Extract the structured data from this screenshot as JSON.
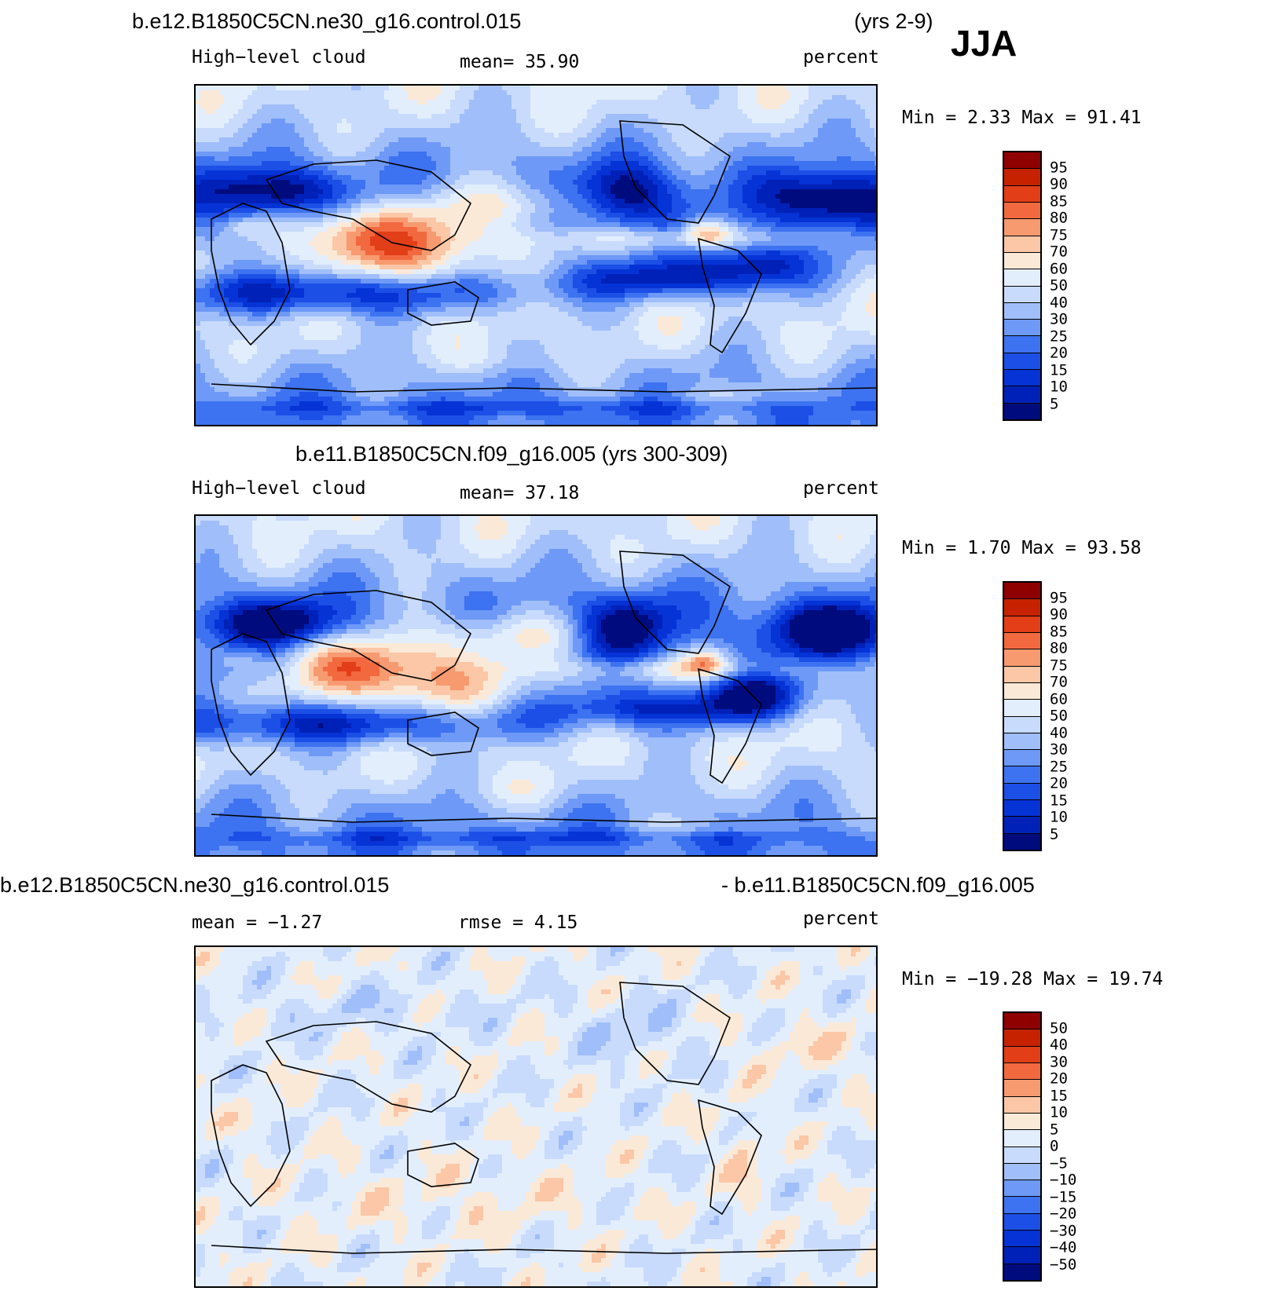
{
  "season": "JJA",
  "colors": {
    "palette": [
      "#000b7e",
      "#0021b8",
      "#0533d6",
      "#1c4fe6",
      "#3d72f0",
      "#6e99f7",
      "#a0bef9",
      "#c8dbfc",
      "#e3eefd",
      "#fbe9d8",
      "#fbc7a6",
      "#f79a70",
      "#f2693f",
      "#e23e17",
      "#c62200",
      "#8f0000"
    ],
    "land_outline": "#000000"
  },
  "panels": [
    {
      "title_left": "b.e12.B1850C5CN.ne30_g16.control.015",
      "title_right": "(yrs 2-9)",
      "variable": "High−level cloud",
      "stat": "mean=   35.90",
      "units": "percent",
      "minmax": "Min =    2.33 Max =   91.41",
      "colorbar_labels": [
        "95",
        "90",
        "85",
        "80",
        "75",
        "70",
        "60",
        "50",
        "40",
        "30",
        "25",
        "20",
        "15",
        "10",
        "5"
      ],
      "field": "model"
    },
    {
      "title_left": "b.e11.B1850C5CN.f09_g16.005 (yrs 300-309)",
      "variable": "High−level cloud",
      "stat": "mean=   37.18",
      "units": "percent",
      "minmax": "Min =    1.70 Max =   93.58",
      "colorbar_labels": [
        "95",
        "90",
        "85",
        "80",
        "75",
        "70",
        "60",
        "50",
        "40",
        "30",
        "25",
        "20",
        "15",
        "10",
        "5"
      ],
      "field": "control"
    },
    {
      "title_left": "b.e12.B1850C5CN.ne30_g16.control.015",
      "title_right": "- b.e11.B1850C5CN.f09_g16.005",
      "stat_left": "mean =   −1.27",
      "stat": "rmse =    4.15",
      "units": "percent",
      "minmax": "Min = −19.28 Max =   19.74",
      "colorbar_labels": [
        "50",
        "40",
        "30",
        "20",
        "15",
        "10",
        "5",
        "0",
        "−5",
        "−10",
        "−15",
        "−20",
        "−30",
        "−40",
        "−50"
      ],
      "field": "difference"
    }
  ]
}
